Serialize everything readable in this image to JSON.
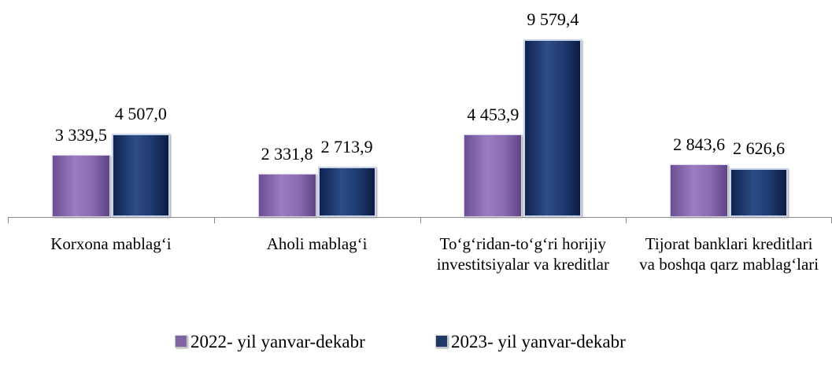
{
  "chart_data": {
    "type": "bar",
    "categories": [
      "Korxona mablag‘i",
      "Aholi mablag‘i",
      "To‘g‘ridan-to‘g‘ri horijiy investitsiyalar va kreditlar",
      "Tijorat banklari kreditlari va boshqa qarz mablag‘lari"
    ],
    "series": [
      {
        "name": "2022- yil yanvar-dekabr",
        "color": "#8064a2",
        "values": [
          3339.5,
          2331.8,
          4453.9,
          2843.6
        ],
        "value_labels": [
          "3 339,5",
          "2 331,8",
          "4 453,9",
          "2 843,6"
        ]
      },
      {
        "name": "2023- yil yanvar-dekabr",
        "color": "#1f3864",
        "values": [
          4507.0,
          2713.9,
          9579.4,
          2626.6
        ],
        "value_labels": [
          "4 507,0",
          "2 713,9",
          "9 579,4",
          "2 626,6"
        ]
      }
    ]
  }
}
